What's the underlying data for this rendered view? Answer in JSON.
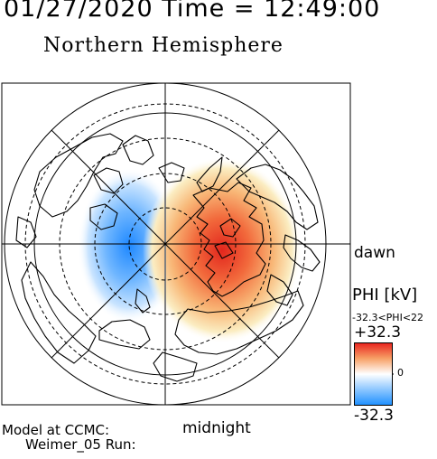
{
  "header": {
    "time_label": "01/27/2020 Time = 12:49:00",
    "title": "Northern Hemisphere"
  },
  "map": {
    "dawn_label": "dawn",
    "midnight_label": "midnight"
  },
  "colorbar": {
    "title": "PHI [kV]",
    "range_text": "-32.3<PHI<22",
    "max_label": "+32.3",
    "zero_label": "0",
    "min_label": "-32.3",
    "colors": {
      "negative": "#1e90ff",
      "zero": "#ffffff",
      "positive": "#e8231e"
    }
  },
  "footer": {
    "model_label": "Model at CCMC:",
    "run_label": "Weimer_05 Run:"
  }
}
